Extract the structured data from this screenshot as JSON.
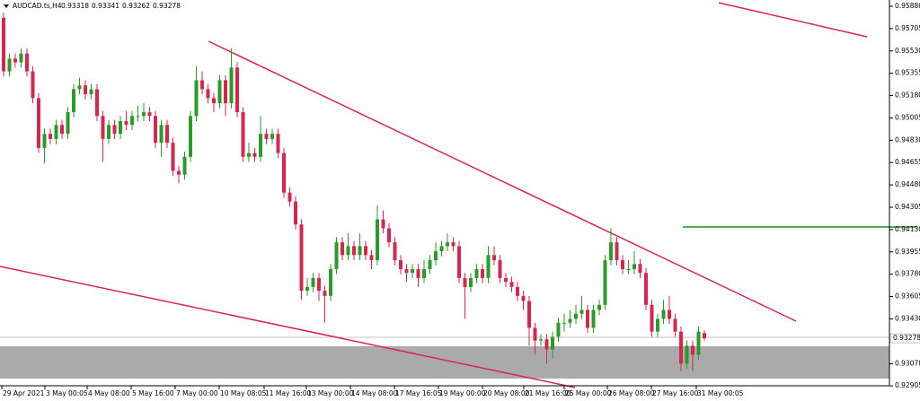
{
  "chart_data": {
    "type": "candlestick",
    "symbol": "AUDCAD.ts,H4",
    "ohlc": [
      0.93318,
      0.93341,
      0.93262,
      0.93278
    ],
    "current_price": 0.93278,
    "up_color": "#2a9a2a",
    "down_color": "#d6264f",
    "ylim": [
      0.92906,
      0.95929
    ],
    "yticks": [
      {
        "value": 0.9588,
        "label": "0.95880"
      },
      {
        "value": 0.95705,
        "label": "0.95705"
      },
      {
        "value": 0.9553,
        "label": "0.95530"
      },
      {
        "value": 0.95355,
        "label": "0.95355"
      },
      {
        "value": 0.9518,
        "label": "0.95180"
      },
      {
        "value": 0.95005,
        "label": "0.95005"
      },
      {
        "value": 0.9483,
        "label": "0.94830"
      },
      {
        "value": 0.94655,
        "label": "0.94655"
      },
      {
        "value": 0.9448,
        "label": "0.94480"
      },
      {
        "value": 0.94305,
        "label": "0.94305"
      },
      {
        "value": 0.9413,
        "label": "0.94130"
      },
      {
        "value": 0.93955,
        "label": "0.93955"
      },
      {
        "value": 0.9378,
        "label": "0.93780"
      },
      {
        "value": 0.93605,
        "label": "0.93605"
      },
      {
        "value": 0.9343,
        "label": "0.93430"
      },
      {
        "value": 0.93078,
        "label": "0.93078"
      },
      {
        "value": 0.92905,
        "label": "0.92905"
      }
    ],
    "x_labels": [
      "29 Apr 2021",
      "3 May 00:05",
      "4 May 08:00",
      "5 May 16:00",
      "7 May 00:00",
      "10 May 08:05",
      "11 May 16:00",
      "13 May 00:00",
      "14 May 08:00",
      "17 May 16:05",
      "19 May 00:00",
      "20 May 08:00",
      "21 May 16:00",
      "25 May 00:00",
      "26 May 08:00",
      "27 May 16:00",
      "31 May 00:05"
    ],
    "candles": [
      [
        0.9579,
        0.9583,
        0.9533,
        0.9537
      ],
      [
        0.9537,
        0.9551,
        0.9533,
        0.9547
      ],
      [
        0.9547,
        0.9551,
        0.954,
        0.9544
      ],
      [
        0.9544,
        0.9555,
        0.954,
        0.9551
      ],
      [
        0.9551,
        0.9555,
        0.9533,
        0.9537
      ],
      [
        0.9537,
        0.9541,
        0.9512,
        0.9516
      ],
      [
        0.9516,
        0.952,
        0.9473,
        0.9477
      ],
      [
        0.9477,
        0.9492,
        0.9465,
        0.9488
      ],
      [
        0.9488,
        0.9492,
        0.948,
        0.9484
      ],
      [
        0.9484,
        0.9499,
        0.948,
        0.9495
      ],
      [
        0.9495,
        0.9499,
        0.9484,
        0.9488
      ],
      [
        0.9488,
        0.9509,
        0.9484,
        0.9505
      ],
      [
        0.9505,
        0.9527,
        0.9501,
        0.9523
      ],
      [
        0.9523,
        0.9532,
        0.9519,
        0.9526
      ],
      [
        0.9526,
        0.953,
        0.9515,
        0.9519
      ],
      [
        0.9519,
        0.9527,
        0.9515,
        0.9523
      ],
      [
        0.9523,
        0.9527,
        0.9498,
        0.9502
      ],
      [
        0.9502,
        0.9506,
        0.9466,
        0.9484
      ],
      [
        0.9484,
        0.9499,
        0.948,
        0.9495
      ],
      [
        0.9495,
        0.9499,
        0.9484,
        0.9488
      ],
      [
        0.9488,
        0.9502,
        0.9484,
        0.9498
      ],
      [
        0.9498,
        0.9506,
        0.9491,
        0.9495
      ],
      [
        0.9495,
        0.9506,
        0.9491,
        0.9502
      ],
      [
        0.9502,
        0.951,
        0.9498,
        0.9502
      ],
      [
        0.9502,
        0.9512,
        0.9498,
        0.9505
      ],
      [
        0.9505,
        0.9509,
        0.9498,
        0.9502
      ],
      [
        0.9502,
        0.9506,
        0.9477,
        0.9481
      ],
      [
        0.9481,
        0.9499,
        0.947,
        0.9495
      ],
      [
        0.9495,
        0.9499,
        0.9477,
        0.9481
      ],
      [
        0.9481,
        0.9485,
        0.9455,
        0.9459
      ],
      [
        0.9459,
        0.9463,
        0.9449,
        0.9456
      ],
      [
        0.9456,
        0.9474,
        0.9452,
        0.947
      ],
      [
        0.947,
        0.9506,
        0.9466,
        0.9502
      ],
      [
        0.9502,
        0.9541,
        0.9498,
        0.953
      ],
      [
        0.953,
        0.9537,
        0.9519,
        0.9523
      ],
      [
        0.9523,
        0.9527,
        0.9512,
        0.9516
      ],
      [
        0.9516,
        0.952,
        0.9505,
        0.9512
      ],
      [
        0.9512,
        0.9534,
        0.9508,
        0.953
      ],
      [
        0.953,
        0.9534,
        0.9502,
        0.9512
      ],
      [
        0.9512,
        0.9555,
        0.9508,
        0.954
      ],
      [
        0.954,
        0.9544,
        0.9501,
        0.9505
      ],
      [
        0.9505,
        0.9509,
        0.9466,
        0.947
      ],
      [
        0.947,
        0.9481,
        0.9466,
        0.9473
      ],
      [
        0.9473,
        0.9477,
        0.9466,
        0.947
      ],
      [
        0.947,
        0.9502,
        0.9466,
        0.9488
      ],
      [
        0.9488,
        0.9492,
        0.948,
        0.9484
      ],
      [
        0.9484,
        0.9492,
        0.948,
        0.9488
      ],
      [
        0.9488,
        0.9492,
        0.9469,
        0.9473
      ],
      [
        0.9473,
        0.9477,
        0.9438,
        0.9442
      ],
      [
        0.9442,
        0.9446,
        0.9431,
        0.9435
      ],
      [
        0.9435,
        0.9439,
        0.9413,
        0.9417
      ],
      [
        0.9417,
        0.9421,
        0.9358,
        0.9365
      ],
      [
        0.9365,
        0.9375,
        0.9361,
        0.9368
      ],
      [
        0.9368,
        0.9379,
        0.9364,
        0.9375
      ],
      [
        0.9375,
        0.9379,
        0.9357,
        0.9365
      ],
      [
        0.9365,
        0.9369,
        0.934,
        0.9361
      ],
      [
        0.9361,
        0.9386,
        0.9357,
        0.9382
      ],
      [
        0.9382,
        0.9407,
        0.9378,
        0.9403
      ],
      [
        0.9403,
        0.9407,
        0.9389,
        0.9393
      ],
      [
        0.9393,
        0.941,
        0.9389,
        0.94
      ],
      [
        0.94,
        0.9404,
        0.9389,
        0.9393
      ],
      [
        0.9393,
        0.941,
        0.9389,
        0.94
      ],
      [
        0.94,
        0.9404,
        0.9389,
        0.9393
      ],
      [
        0.9393,
        0.9397,
        0.9382,
        0.9389
      ],
      [
        0.9389,
        0.9432,
        0.9385,
        0.9421
      ],
      [
        0.9421,
        0.9428,
        0.941,
        0.9414
      ],
      [
        0.9414,
        0.9418,
        0.9399,
        0.9403
      ],
      [
        0.9403,
        0.9407,
        0.9385,
        0.9389
      ],
      [
        0.9389,
        0.9393,
        0.9378,
        0.9382
      ],
      [
        0.9382,
        0.9386,
        0.9372,
        0.9379
      ],
      [
        0.9379,
        0.9386,
        0.9375,
        0.9382
      ],
      [
        0.9382,
        0.9386,
        0.9368,
        0.9375
      ],
      [
        0.9375,
        0.9389,
        0.9371,
        0.9382
      ],
      [
        0.9382,
        0.9393,
        0.9378,
        0.9389
      ],
      [
        0.9389,
        0.9403,
        0.9385,
        0.9396
      ],
      [
        0.9396,
        0.9404,
        0.9392,
        0.94
      ],
      [
        0.94,
        0.941,
        0.9396,
        0.9403
      ],
      [
        0.9403,
        0.9407,
        0.9396,
        0.94
      ],
      [
        0.94,
        0.9404,
        0.9371,
        0.9375
      ],
      [
        0.9375,
        0.9379,
        0.9343,
        0.9368
      ],
      [
        0.9368,
        0.9379,
        0.9364,
        0.9375
      ],
      [
        0.9375,
        0.9386,
        0.9371,
        0.9382
      ],
      [
        0.9382,
        0.9386,
        0.9371,
        0.9375
      ],
      [
        0.9375,
        0.94,
        0.9371,
        0.9393
      ],
      [
        0.9393,
        0.94,
        0.9385,
        0.9389
      ],
      [
        0.9389,
        0.9393,
        0.9371,
        0.9375
      ],
      [
        0.9375,
        0.9379,
        0.9368,
        0.9372
      ],
      [
        0.9372,
        0.9376,
        0.9364,
        0.9368
      ],
      [
        0.9368,
        0.9372,
        0.9357,
        0.9361
      ],
      [
        0.9361,
        0.9365,
        0.935,
        0.9357
      ],
      [
        0.9357,
        0.9361,
        0.9322,
        0.9336
      ],
      [
        0.9336,
        0.934,
        0.9315,
        0.9326
      ],
      [
        0.9326,
        0.9331,
        0.9322,
        0.9327
      ],
      [
        0.9327,
        0.9331,
        0.9308,
        0.9319
      ],
      [
        0.9319,
        0.9333,
        0.9312,
        0.9329
      ],
      [
        0.9329,
        0.9344,
        0.9325,
        0.934
      ],
      [
        0.934,
        0.9347,
        0.9333,
        0.934
      ],
      [
        0.934,
        0.935,
        0.9336,
        0.9343
      ],
      [
        0.9343,
        0.9354,
        0.9339,
        0.9347
      ],
      [
        0.9347,
        0.9361,
        0.9343,
        0.935
      ],
      [
        0.935,
        0.9354,
        0.9332,
        0.9336
      ],
      [
        0.9336,
        0.9354,
        0.9332,
        0.935
      ],
      [
        0.935,
        0.9358,
        0.9346,
        0.9354
      ],
      [
        0.9354,
        0.9393,
        0.935,
        0.9389
      ],
      [
        0.9389,
        0.9414,
        0.9385,
        0.9403
      ],
      [
        0.9403,
        0.9407,
        0.9385,
        0.9389
      ],
      [
        0.9389,
        0.9393,
        0.9378,
        0.9382
      ],
      [
        0.9382,
        0.9389,
        0.9378,
        0.9382
      ],
      [
        0.9382,
        0.9396,
        0.9378,
        0.9386
      ],
      [
        0.9386,
        0.939,
        0.9375,
        0.9379
      ],
      [
        0.9379,
        0.9383,
        0.935,
        0.9354
      ],
      [
        0.9354,
        0.9358,
        0.9329,
        0.9333
      ],
      [
        0.9333,
        0.9347,
        0.9329,
        0.9343
      ],
      [
        0.9343,
        0.9358,
        0.9339,
        0.935
      ],
      [
        0.935,
        0.9361,
        0.9339,
        0.9343
      ],
      [
        0.9343,
        0.9347,
        0.9329,
        0.9333
      ],
      [
        0.9333,
        0.9337,
        0.9302,
        0.9308
      ],
      [
        0.9308,
        0.9326,
        0.9304,
        0.9322
      ],
      [
        0.9322,
        0.9326,
        0.9302,
        0.9315
      ],
      [
        0.9315,
        0.9337,
        0.9311,
        0.9333
      ],
      [
        0.93318,
        0.93341,
        0.93262,
        0.93278
      ]
    ]
  }
}
